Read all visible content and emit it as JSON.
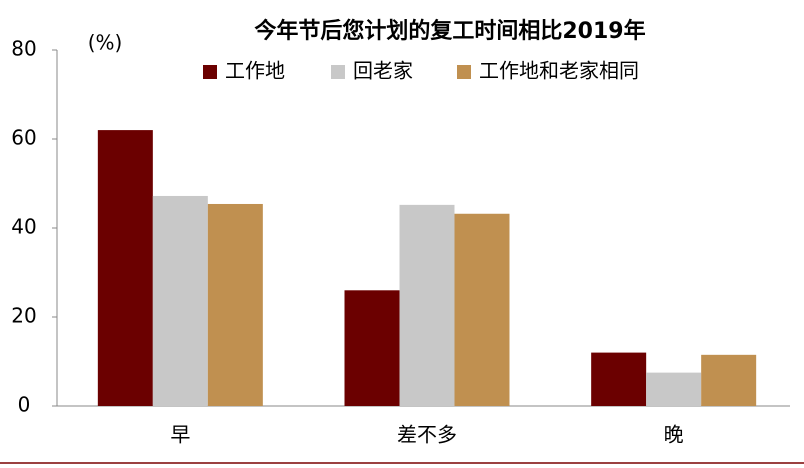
{
  "chart_data": {
    "type": "bar",
    "title": "今年节后您计划的复工时间相比2019年",
    "y_label": "(%)",
    "categories": [
      "早",
      "差不多",
      "晚"
    ],
    "series": [
      {
        "name": "工作地",
        "color": "#6b0000",
        "values": [
          62,
          26,
          12
        ]
      },
      {
        "name": "回老家",
        "color": "#c8c8c8",
        "values": [
          47.2,
          45.2,
          7.5
        ]
      },
      {
        "name": "工作地和老家相同",
        "color": "#c09050",
        "values": [
          45.4,
          43.2,
          11.5
        ]
      }
    ],
    "ylim": [
      0,
      80
    ],
    "yticks": [
      0,
      20,
      40,
      60,
      80
    ],
    "grid": false
  }
}
